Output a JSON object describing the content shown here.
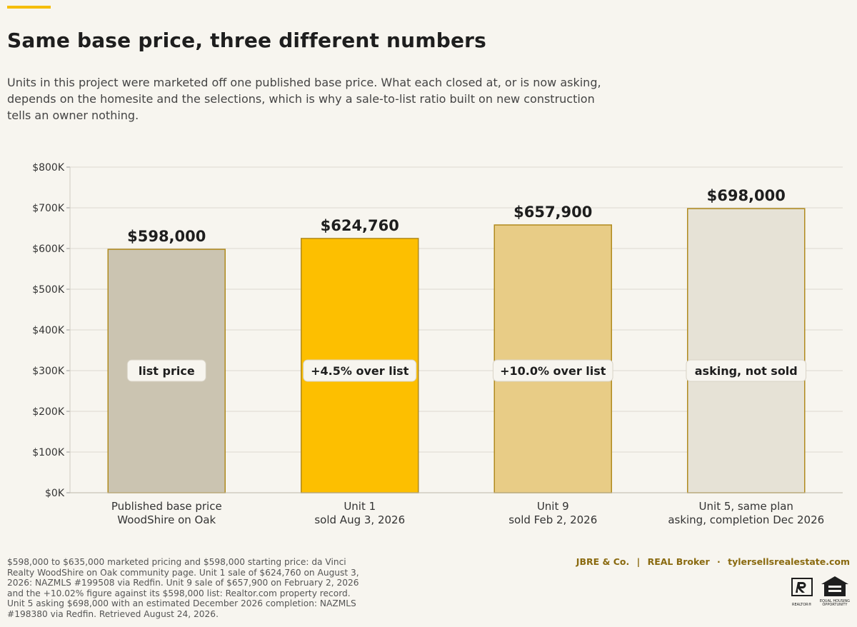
{
  "header": {
    "title": "Same base price, three different numbers",
    "subtitle": "Units in this project were marketed off one published base price. What each closed at, or is now asking, depends on the homesite and the selections, which is why a sale-to-list ratio built on new construction tells an owner nothing."
  },
  "chart_data": {
    "type": "bar",
    "categories": [
      [
        "Published base price",
        "WoodShire on Oak"
      ],
      [
        "Unit 1",
        "sold Aug 3, 2026"
      ],
      [
        "Unit 9",
        "sold Feb 2, 2026"
      ],
      [
        "Unit 5, same plan",
        "asking, completion Dec 2026"
      ]
    ],
    "values": [
      598000,
      624760,
      657900,
      698000
    ],
    "value_labels": [
      "$598,000",
      "$624,760",
      "$657,900",
      "$698,000"
    ],
    "bar_annotations": [
      "list price",
      "+4.5% over list",
      "+10.0% over list",
      "asking, not sold"
    ],
    "bar_colors": [
      "#cbc4b1",
      "#fdbf00",
      "#e8cc86",
      "#e6e2d6"
    ],
    "bar_edge_color": "#b08a1e",
    "ylim": [
      0,
      800000
    ],
    "yticks": [
      0,
      100000,
      200000,
      300000,
      400000,
      500000,
      600000,
      700000,
      800000
    ],
    "ytick_labels": [
      "$0K",
      "$100K",
      "$200K",
      "$300K",
      "$400K",
      "$500K",
      "$600K",
      "$700K",
      "$800K"
    ],
    "annotation_value": 300000,
    "grid": true,
    "xlabel": "",
    "ylabel": ""
  },
  "footer": {
    "source": "$598,000 to $635,000 marketed pricing and $598,000 starting price: da Vinci Realty WoodShire on Oak community page. Unit 1 sale of $624,760 on August 3, 2026: NAZMLS #199508 via Redfin. Unit 9 sale of $657,900 on February 2, 2026 and the +10.02% figure against its $598,000 list: Realtor.com property record. Unit 5 asking $698,000 with an estimated December 2026 completion: NAZMLS #198380 via Redfin. Retrieved August 24, 2026.",
    "brand_left": "JBRE & Co.",
    "brand_divider": "|",
    "brand_middle": "REAL Broker",
    "brand_dot": "·",
    "brand_site": "tylersellsrealestate.com",
    "realtor_badge_caption": "REALTOR®",
    "equal_housing_caption_1": "EQUAL HOUSING",
    "equal_housing_caption_2": "OPPORTUNITY"
  }
}
